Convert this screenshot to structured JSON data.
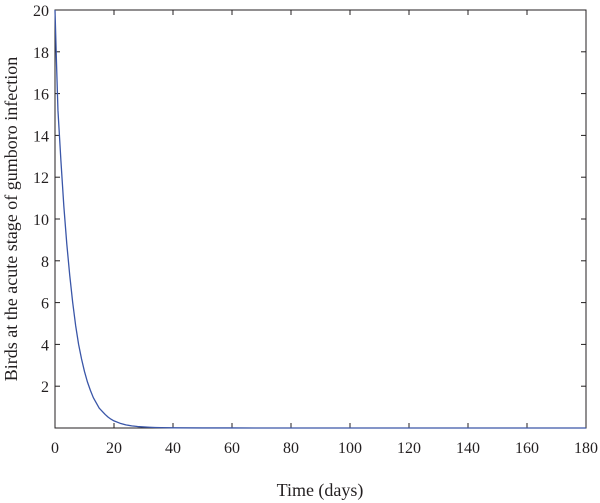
{
  "chart_data": {
    "type": "line",
    "title": "",
    "xlabel": "Time (days)",
    "ylabel": "Birds at the acute stage of gumboro infection",
    "xlim": [
      0,
      180
    ],
    "ylim": [
      0,
      20
    ],
    "x_ticks": [
      0,
      20,
      40,
      60,
      80,
      100,
      120,
      140,
      160,
      180
    ],
    "y_ticks": [
      2,
      4,
      6,
      8,
      10,
      12,
      14,
      16,
      18,
      20
    ],
    "grid": false,
    "legend": "none",
    "line_color": "#3a56a8",
    "series": [
      {
        "x": [
          0,
          0.5,
          1,
          2,
          3,
          4,
          5,
          6,
          7,
          8,
          9,
          10,
          11,
          12,
          13,
          14,
          15,
          16,
          17,
          18,
          19,
          20,
          22,
          24,
          26,
          28,
          30,
          32,
          34,
          36,
          40,
          50,
          60,
          80,
          100,
          120,
          140,
          160,
          180
        ],
        "values": [
          20,
          17.5,
          15.2,
          12.8,
          10.6,
          8.8,
          7.3,
          6.0,
          4.9,
          4.0,
          3.3,
          2.7,
          2.2,
          1.8,
          1.45,
          1.2,
          0.95,
          0.8,
          0.65,
          0.52,
          0.42,
          0.34,
          0.23,
          0.15,
          0.1,
          0.07,
          0.05,
          0.035,
          0.025,
          0.018,
          0.01,
          0.004,
          0.002,
          0.001,
          0.0,
          0.0,
          0.0,
          0.0,
          0.0
        ]
      }
    ]
  }
}
